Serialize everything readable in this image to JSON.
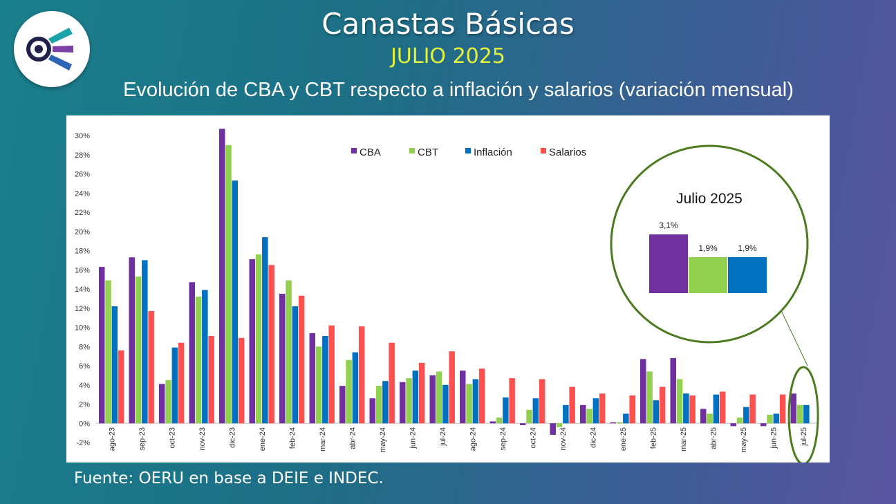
{
  "header": {
    "title": "Canastas Básicas",
    "period": "JULIO 2025",
    "subtitle": "Evolución de CBA y CBT respecto a inflación y salarios (variación mensual)"
  },
  "footer": {
    "source": "Fuente: OERU en base a DEIE e INDEC."
  },
  "logo": {
    "icon": "oeru-logo-icon"
  },
  "chart_data": {
    "type": "bar",
    "ylim": [
      -2,
      30
    ],
    "ytick_step": 2,
    "ytick_suffix": "%",
    "legend_position": "top-center",
    "grid": false,
    "categories": [
      "ago-23",
      "sep-23",
      "oct-23",
      "nov-23",
      "dic-23",
      "ene-24",
      "feb-24",
      "mar-24",
      "abr-24",
      "may-24",
      "jun-24",
      "jul-24",
      "ago-24",
      "sep-24",
      "oct-24",
      "nov-24",
      "dic-24",
      "ene-25",
      "feb-25",
      "mar-25",
      "abr-25",
      "may-25",
      "jun-25",
      "jul-25"
    ],
    "series": [
      {
        "name": "CBA",
        "color": "#7030a0",
        "values": [
          16.3,
          17.3,
          4.1,
          14.7,
          30.7,
          17.1,
          13.5,
          9.4,
          3.9,
          2.6,
          4.3,
          5.0,
          5.5,
          0.2,
          -0.2,
          -1.2,
          1.9,
          0.1,
          6.7,
          6.8,
          1.5,
          -0.3,
          -0.3,
          3.1
        ]
      },
      {
        "name": "CBT",
        "color": "#92d050",
        "values": [
          14.9,
          15.3,
          4.5,
          13.2,
          29.0,
          17.6,
          14.9,
          8.0,
          6.6,
          3.9,
          4.7,
          5.4,
          4.1,
          0.6,
          1.4,
          -0.4,
          1.5,
          0.1,
          5.4,
          4.6,
          1.0,
          0.6,
          0.9,
          1.9
        ]
      },
      {
        "name": "Inflación",
        "color": "#0070c0",
        "values": [
          12.2,
          17.0,
          7.9,
          13.9,
          25.3,
          19.4,
          12.2,
          9.1,
          7.4,
          4.4,
          5.5,
          4.0,
          4.6,
          2.7,
          2.6,
          1.9,
          2.6,
          1.0,
          2.4,
          3.1,
          3.0,
          1.7,
          1.0,
          1.9
        ]
      },
      {
        "name": "Salarios",
        "color": "#ff5050",
        "values": [
          7.6,
          11.7,
          8.4,
          9.1,
          8.9,
          16.5,
          13.3,
          10.2,
          10.1,
          8.4,
          6.3,
          7.5,
          5.7,
          4.7,
          4.6,
          3.8,
          3.1,
          2.9,
          3.8,
          2.9,
          3.3,
          3.0,
          3.0,
          null
        ]
      }
    ],
    "inset": {
      "title": "Julio 2025",
      "bars": [
        {
          "series": "CBA",
          "value": 3.1,
          "label": "3,1%",
          "color": "#7030a0"
        },
        {
          "series": "CBT",
          "value": 1.9,
          "label": "1,9%",
          "color": "#92d050"
        },
        {
          "series": "Inflación",
          "value": 1.9,
          "label": "1,9%",
          "color": "#0070c0"
        }
      ]
    }
  }
}
